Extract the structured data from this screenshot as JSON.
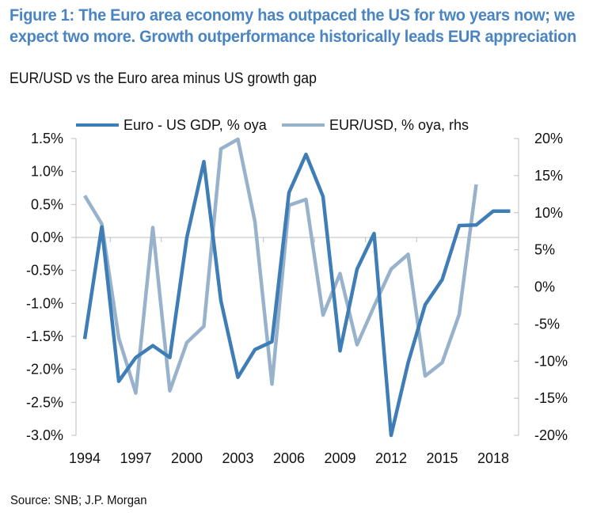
{
  "title": "Figure 1: The Euro area economy has outpaced the US for two years now; we expect two more. Growth outperformance historically leads EUR appreciation",
  "subtitle": "EUR/USD vs the Euro area minus US growth gap",
  "source": "Source: SNB; J.P. Morgan",
  "colors": {
    "title": "#4a85c2",
    "gdp_series": "#3e7db5",
    "eurusd_series": "#98b2cc",
    "axis": "#bdbdbd"
  },
  "chart_data": {
    "type": "line",
    "title": "EUR/USD vs the Euro area minus US growth gap",
    "xlabel": "",
    "ylabel": "Euro - US GDP, % oya",
    "y2label": "EUR/USD, % oya, rhs",
    "x": [
      1994,
      1995,
      1996,
      1997,
      1998,
      1999,
      2000,
      2001,
      2002,
      2003,
      2004,
      2005,
      2006,
      2007,
      2008,
      2009,
      2010,
      2011,
      2012,
      2013,
      2014,
      2015,
      2016,
      2017,
      2018,
      2019
    ],
    "xticks": [
      "1994",
      "1997",
      "2000",
      "2003",
      "2006",
      "2009",
      "2012",
      "2015",
      "2018"
    ],
    "xlim": [
      1994,
      2019
    ],
    "ylim": [
      -3.0,
      1.5
    ],
    "y2lim": [
      -20,
      20
    ],
    "yticks": [
      "1.5%",
      "1.0%",
      "0.5%",
      "0.0%",
      "-0.5%",
      "-1.0%",
      "-1.5%",
      "-2.0%",
      "-2.5%",
      "-3.0%"
    ],
    "y2ticks": [
      "20%",
      "15%",
      "10%",
      "5%",
      "0%",
      "-5%",
      "-10%",
      "-15%",
      "-20%"
    ],
    "legend_position": "top",
    "grid": false,
    "series": [
      {
        "name": "Euro - US GDP, % oya",
        "axis": "left",
        "values": [
          -1.54,
          0.16,
          -2.18,
          -1.82,
          -1.64,
          -1.82,
          0.0,
          1.15,
          -0.96,
          -2.12,
          -1.7,
          -1.58,
          0.68,
          1.26,
          0.62,
          -1.72,
          -0.48,
          0.06,
          -3.0,
          -1.9,
          -1.02,
          -0.64,
          0.18,
          0.19,
          0.4,
          0.4
        ]
      },
      {
        "name": "EUR/USD, % oya, rhs",
        "axis": "right",
        "values": [
          12.3,
          8.5,
          -6.9,
          -14.3,
          8.0,
          -14.0,
          -7.5,
          -5.3,
          18.6,
          19.9,
          8.8,
          -13.1,
          11.0,
          11.8,
          -3.8,
          1.8,
          -7.8,
          -2.6,
          2.4,
          4.4,
          -12.0,
          -10.2,
          -3.7,
          13.8
        ]
      }
    ]
  }
}
